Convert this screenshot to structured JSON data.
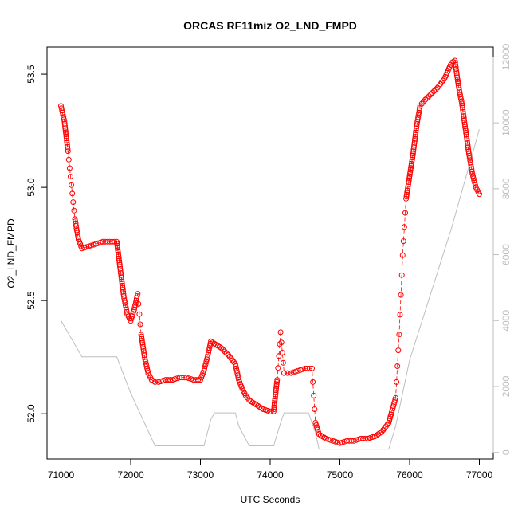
{
  "chart_data": {
    "type": "scatter",
    "title": "ORCAS RF11miz O2_LND_FMPD",
    "xlabel": "UTC Seconds",
    "ylabel": "O2_LND_FMPD",
    "xlim": [
      70800,
      77200
    ],
    "ylim": [
      51.8,
      53.62
    ],
    "y2lim": [
      -200,
      12300
    ],
    "x_ticks": [
      71000,
      72000,
      73000,
      74000,
      75000,
      76000,
      77000
    ],
    "y_ticks": [
      52.0,
      52.5,
      53.0,
      53.5
    ],
    "y_tick_labels": [
      "52.0",
      "52.5",
      "53.0",
      "53.5"
    ],
    "y2_ticks": [
      0,
      2000,
      4000,
      6000,
      8000,
      10000,
      12000
    ],
    "colors": {
      "primary": "#ff0000",
      "secondary": "#bebebe",
      "frame": "#000000"
    },
    "series": [
      {
        "axis": "left",
        "style": "points",
        "color": "#ff0000",
        "x": [
          71000,
          71050,
          71100,
          71150,
          71200,
          71250,
          71300,
          71400,
          71500,
          71600,
          71700,
          71800,
          71850,
          71900,
          71950,
          72000,
          72050,
          72100,
          72150,
          72200,
          72250,
          72300,
          72350,
          72400,
          72500,
          72600,
          72700,
          72800,
          72900,
          73000,
          73050,
          73100,
          73150,
          73200,
          73300,
          73400,
          73500,
          73550,
          73600,
          73650,
          73700,
          73800,
          73900,
          74000,
          74050,
          74100,
          74150,
          74200,
          74250,
          74300,
          74400,
          74500,
          74600,
          74650,
          74700,
          74800,
          74900,
          75000,
          75100,
          75200,
          75300,
          75400,
          75500,
          75600,
          75700,
          75800,
          75850,
          75900,
          75950,
          76000,
          76050,
          76100,
          76150,
          76200,
          76300,
          76400,
          76500,
          76600,
          76650,
          76700,
          76750,
          76800,
          76850,
          76900,
          76950,
          77000
        ],
        "y": [
          53.36,
          53.29,
          53.16,
          53.01,
          52.86,
          52.77,
          52.73,
          52.74,
          52.75,
          52.76,
          52.76,
          52.76,
          52.64,
          52.52,
          52.44,
          52.41,
          52.46,
          52.53,
          52.35,
          52.25,
          52.18,
          52.15,
          52.14,
          52.14,
          52.15,
          52.15,
          52.16,
          52.16,
          52.15,
          52.15,
          52.19,
          52.25,
          52.32,
          52.31,
          52.29,
          52.26,
          52.22,
          52.15,
          52.11,
          52.08,
          52.06,
          52.04,
          52.02,
          52.01,
          52.01,
          52.15,
          52.36,
          52.18,
          52.18,
          52.18,
          52.19,
          52.2,
          52.2,
          51.96,
          51.91,
          51.89,
          51.88,
          51.87,
          51.88,
          51.88,
          51.89,
          51.89,
          51.9,
          51.92,
          51.96,
          52.07,
          52.35,
          52.7,
          52.95,
          53.05,
          53.15,
          53.27,
          53.36,
          53.38,
          53.41,
          53.44,
          53.48,
          53.55,
          53.56,
          53.45,
          53.37,
          53.26,
          53.15,
          53.06,
          53.0,
          52.97
        ]
      },
      {
        "axis": "right",
        "style": "line",
        "color": "#bebebe",
        "x": [
          71000,
          71300,
          71500,
          71800,
          72000,
          72350,
          72700,
          73050,
          73150,
          73200,
          73500,
          73550,
          73700,
          74050,
          74150,
          74200,
          74550,
          74650,
          74700,
          75700,
          75800,
          76000,
          76600,
          77000
        ],
        "y": [
          4000,
          2900,
          2900,
          2900,
          1800,
          200,
          200,
          200,
          1000,
          1200,
          1200,
          800,
          200,
          200,
          900,
          1200,
          1200,
          600,
          100,
          100,
          800,
          2800,
          6800,
          9800
        ]
      }
    ]
  }
}
